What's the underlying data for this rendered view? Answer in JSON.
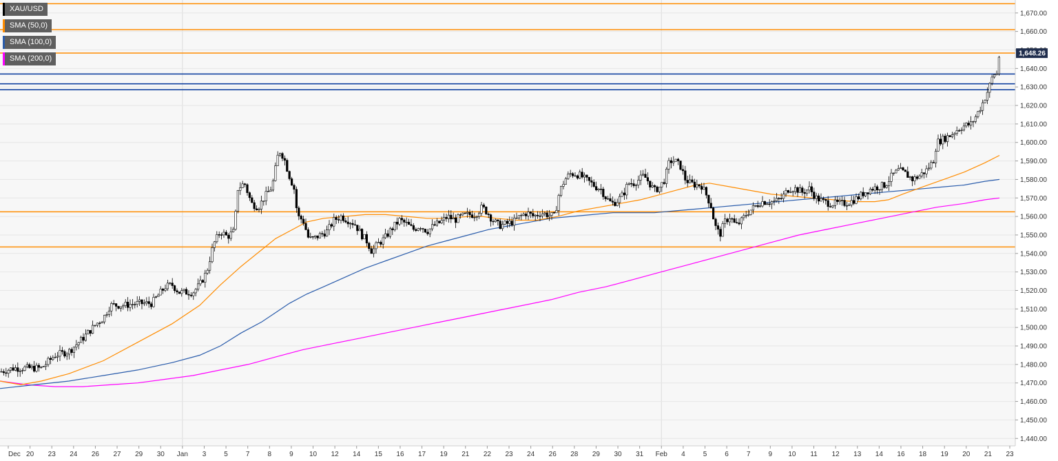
{
  "chart_data": {
    "type": "candlestick",
    "instrument": "XAU/USD",
    "legend": [
      {
        "label": "XAU/USD",
        "color": "#000000"
      },
      {
        "label": "SMA (50,0)",
        "color": "#ff8c00"
      },
      {
        "label": "SMA (100,0)",
        "color": "#2a5cab"
      },
      {
        "label": "SMA (200,0)",
        "color": "#ff00ff"
      }
    ],
    "legend_position": "top-left",
    "last_price_label": "1,648.26",
    "last_price": 1648.26,
    "ylim": [
      1436,
      1677
    ],
    "y_ticks": [
      1440,
      1450,
      1460,
      1470,
      1480,
      1490,
      1500,
      1510,
      1520,
      1530,
      1540,
      1550,
      1560,
      1570,
      1580,
      1590,
      1600,
      1610,
      1620,
      1630,
      1640,
      1650,
      1660,
      1670
    ],
    "y_tick_labels": [
      "1,440.00",
      "1,450.00",
      "1,460.00",
      "1,470.00",
      "1,480.00",
      "1,490.00",
      "1,500.00",
      "1,510.00",
      "1,520.00",
      "1,530.00",
      "1,540.00",
      "1,550.00",
      "1,560.00",
      "1,570.00",
      "1,580.00",
      "1,590.00",
      "1,600.00",
      "1,610.00",
      "1,620.00",
      "1,630.00",
      "1,640.00",
      "1,650.00",
      "1,660.00",
      "1,670.00"
    ],
    "x_tick_labels": [
      "Dec",
      "20",
      "23",
      "24",
      "26",
      "27",
      "29",
      "30",
      "Jan",
      "3",
      "5",
      "7",
      "8",
      "9",
      "10",
      "12",
      "14",
      "15",
      "16",
      "17",
      "19",
      "21",
      "22",
      "23",
      "24",
      "26",
      "28",
      "29",
      "30",
      "31",
      "Feb",
      "4",
      "5",
      "6",
      "7",
      "9",
      "10",
      "11",
      "12",
      "13",
      "14",
      "16",
      "18",
      "19",
      "20",
      "21",
      "23"
    ],
    "horizontal_lines": [
      {
        "value": 1675,
        "color": "#ff8c00"
      },
      {
        "value": 1661,
        "color": "#ff8c00"
      },
      {
        "value": 1648.3,
        "color": "#ff8c00"
      },
      {
        "value": 1637,
        "color": "#003399"
      },
      {
        "value": 1631.7,
        "color": "#003399"
      },
      {
        "value": 1628.5,
        "color": "#003399"
      },
      {
        "value": 1562.5,
        "color": "#ff8c00"
      },
      {
        "value": 1543.5,
        "color": "#ff8c00"
      }
    ],
    "price_path_close": [
      [
        0,
        1476
      ],
      [
        20,
        1478
      ],
      [
        40,
        1478
      ],
      [
        60,
        1478
      ],
      [
        80,
        1485
      ],
      [
        100,
        1487
      ],
      [
        120,
        1494
      ],
      [
        140,
        1502
      ],
      [
        150,
        1505
      ],
      [
        160,
        1512
      ],
      [
        180,
        1512
      ],
      [
        200,
        1513
      ],
      [
        220,
        1513
      ],
      [
        240,
        1522
      ],
      [
        250,
        1523
      ],
      [
        260,
        1519
      ],
      [
        280,
        1519
      ],
      [
        290,
        1523
      ],
      [
        300,
        1530
      ],
      [
        310,
        1545
      ],
      [
        320,
        1552
      ],
      [
        330,
        1549
      ],
      [
        340,
        1552
      ],
      [
        345,
        1575
      ],
      [
        355,
        1578
      ],
      [
        365,
        1567
      ],
      [
        375,
        1565
      ],
      [
        385,
        1571
      ],
      [
        395,
        1576
      ],
      [
        405,
        1596
      ],
      [
        412,
        1592
      ],
      [
        420,
        1582
      ],
      [
        427,
        1575
      ],
      [
        432,
        1560
      ],
      [
        440,
        1558
      ],
      [
        448,
        1548
      ],
      [
        455,
        1548
      ],
      [
        465,
        1550
      ],
      [
        475,
        1552
      ],
      [
        485,
        1558
      ],
      [
        495,
        1560
      ],
      [
        505,
        1558
      ],
      [
        515,
        1556
      ],
      [
        525,
        1550
      ],
      [
        532,
        1547
      ],
      [
        540,
        1541
      ],
      [
        548,
        1545
      ],
      [
        558,
        1548
      ],
      [
        568,
        1553
      ],
      [
        580,
        1558
      ],
      [
        590,
        1556
      ],
      [
        600,
        1553
      ],
      [
        610,
        1555
      ],
      [
        620,
        1552
      ],
      [
        630,
        1555
      ],
      [
        640,
        1557
      ],
      [
        650,
        1560
      ],
      [
        660,
        1558
      ],
      [
        670,
        1560
      ],
      [
        680,
        1561
      ],
      [
        690,
        1561
      ],
      [
        700,
        1565
      ],
      [
        708,
        1562
      ],
      [
        715,
        1558
      ],
      [
        725,
        1555
      ],
      [
        735,
        1556
      ],
      [
        745,
        1557
      ],
      [
        755,
        1560
      ],
      [
        765,
        1562
      ],
      [
        775,
        1560
      ],
      [
        785,
        1562
      ],
      [
        795,
        1561
      ],
      [
        805,
        1560
      ],
      [
        812,
        1573
      ],
      [
        820,
        1580
      ],
      [
        828,
        1583
      ],
      [
        835,
        1583
      ],
      [
        843,
        1582
      ],
      [
        850,
        1580
      ],
      [
        858,
        1578
      ],
      [
        865,
        1576
      ],
      [
        872,
        1575
      ],
      [
        880,
        1570
      ],
      [
        888,
        1567
      ],
      [
        895,
        1568
      ],
      [
        905,
        1572
      ],
      [
        912,
        1578
      ],
      [
        920,
        1578
      ],
      [
        928,
        1580
      ],
      [
        935,
        1582
      ],
      [
        943,
        1578
      ],
      [
        950,
        1574
      ],
      [
        958,
        1576
      ],
      [
        965,
        1580
      ],
      [
        972,
        1590
      ],
      [
        980,
        1590
      ],
      [
        988,
        1587
      ],
      [
        995,
        1580
      ],
      [
        1002,
        1578
      ],
      [
        1010,
        1577
      ],
      [
        1018,
        1577
      ],
      [
        1025,
        1572
      ],
      [
        1032,
        1566
      ],
      [
        1038,
        1555
      ],
      [
        1045,
        1550
      ],
      [
        1052,
        1557
      ],
      [
        1060,
        1560
      ],
      [
        1068,
        1555
      ],
      [
        1075,
        1557
      ],
      [
        1085,
        1562
      ],
      [
        1095,
        1565
      ],
      [
        1105,
        1568
      ],
      [
        1115,
        1568
      ],
      [
        1125,
        1568
      ],
      [
        1135,
        1570
      ],
      [
        1145,
        1575
      ],
      [
        1155,
        1575
      ],
      [
        1165,
        1573
      ],
      [
        1175,
        1575
      ],
      [
        1185,
        1570
      ],
      [
        1195,
        1568
      ],
      [
        1205,
        1567
      ],
      [
        1215,
        1567
      ],
      [
        1225,
        1567
      ],
      [
        1235,
        1568
      ],
      [
        1245,
        1570
      ],
      [
        1255,
        1573
      ],
      [
        1265,
        1575
      ],
      [
        1275,
        1576
      ],
      [
        1285,
        1577
      ],
      [
        1295,
        1582
      ],
      [
        1305,
        1585
      ],
      [
        1315,
        1583
      ],
      [
        1325,
        1580
      ],
      [
        1335,
        1582
      ],
      [
        1345,
        1585
      ],
      [
        1355,
        1590
      ],
      [
        1360,
        1600
      ],
      [
        1370,
        1602
      ],
      [
        1380,
        1604
      ],
      [
        1390,
        1607
      ],
      [
        1400,
        1609
      ],
      [
        1410,
        1610
      ],
      [
        1418,
        1615
      ],
      [
        1425,
        1620
      ],
      [
        1432,
        1626
      ],
      [
        1438,
        1632
      ],
      [
        1442,
        1637
      ],
      [
        1447,
        1637
      ],
      [
        1451,
        1648.26
      ]
    ],
    "sma50": [
      [
        0,
        1471
      ],
      [
        30,
        1469
      ],
      [
        60,
        1471
      ],
      [
        100,
        1475
      ],
      [
        150,
        1482
      ],
      [
        200,
        1492
      ],
      [
        250,
        1502
      ],
      [
        290,
        1512
      ],
      [
        320,
        1523
      ],
      [
        350,
        1533
      ],
      [
        380,
        1542
      ],
      [
        400,
        1548
      ],
      [
        420,
        1552
      ],
      [
        445,
        1557
      ],
      [
        470,
        1559
      ],
      [
        500,
        1560
      ],
      [
        530,
        1561
      ],
      [
        560,
        1561
      ],
      [
        590,
        1560
      ],
      [
        620,
        1559
      ],
      [
        650,
        1559
      ],
      [
        680,
        1560
      ],
      [
        700,
        1560
      ],
      [
        720,
        1559
      ],
      [
        750,
        1558
      ],
      [
        780,
        1558
      ],
      [
        810,
        1560
      ],
      [
        840,
        1563
      ],
      [
        870,
        1565
      ],
      [
        900,
        1567
      ],
      [
        930,
        1569
      ],
      [
        960,
        1572
      ],
      [
        990,
        1575
      ],
      [
        1010,
        1577
      ],
      [
        1030,
        1578
      ],
      [
        1060,
        1576
      ],
      [
        1090,
        1574
      ],
      [
        1120,
        1572
      ],
      [
        1150,
        1571
      ],
      [
        1180,
        1570
      ],
      [
        1210,
        1569
      ],
      [
        1240,
        1568
      ],
      [
        1270,
        1568
      ],
      [
        1290,
        1569
      ],
      [
        1310,
        1572
      ],
      [
        1340,
        1576
      ],
      [
        1370,
        1580
      ],
      [
        1400,
        1584
      ],
      [
        1430,
        1589
      ],
      [
        1451,
        1593
      ]
    ],
    "sma100": [
      [
        0,
        1467
      ],
      [
        50,
        1469
      ],
      [
        100,
        1471
      ],
      [
        150,
        1474
      ],
      [
        200,
        1477
      ],
      [
        250,
        1481
      ],
      [
        290,
        1485
      ],
      [
        320,
        1490
      ],
      [
        350,
        1497
      ],
      [
        380,
        1503
      ],
      [
        400,
        1508
      ],
      [
        420,
        1513
      ],
      [
        445,
        1518
      ],
      [
        470,
        1522
      ],
      [
        500,
        1527
      ],
      [
        530,
        1532
      ],
      [
        560,
        1536
      ],
      [
        590,
        1540
      ],
      [
        620,
        1544
      ],
      [
        650,
        1547
      ],
      [
        680,
        1550
      ],
      [
        710,
        1553
      ],
      [
        740,
        1555
      ],
      [
        770,
        1557
      ],
      [
        800,
        1559
      ],
      [
        830,
        1560
      ],
      [
        860,
        1561
      ],
      [
        890,
        1562
      ],
      [
        920,
        1562
      ],
      [
        950,
        1562
      ],
      [
        980,
        1563
      ],
      [
        1010,
        1564
      ],
      [
        1040,
        1565
      ],
      [
        1070,
        1566
      ],
      [
        1100,
        1567
      ],
      [
        1130,
        1568
      ],
      [
        1160,
        1569
      ],
      [
        1190,
        1570
      ],
      [
        1220,
        1571
      ],
      [
        1250,
        1572
      ],
      [
        1280,
        1573
      ],
      [
        1310,
        1574
      ],
      [
        1340,
        1575
      ],
      [
        1370,
        1576
      ],
      [
        1400,
        1577
      ],
      [
        1430,
        1579
      ],
      [
        1451,
        1580
      ]
    ],
    "sma200": [
      [
        0,
        1471
      ],
      [
        40,
        1469
      ],
      [
        80,
        1468
      ],
      [
        120,
        1468
      ],
      [
        160,
        1469
      ],
      [
        200,
        1470
      ],
      [
        240,
        1472
      ],
      [
        280,
        1474
      ],
      [
        320,
        1477
      ],
      [
        360,
        1480
      ],
      [
        400,
        1484
      ],
      [
        440,
        1488
      ],
      [
        480,
        1491
      ],
      [
        520,
        1494
      ],
      [
        560,
        1497
      ],
      [
        600,
        1500
      ],
      [
        640,
        1503
      ],
      [
        680,
        1506
      ],
      [
        720,
        1509
      ],
      [
        760,
        1512
      ],
      [
        800,
        1515
      ],
      [
        840,
        1519
      ],
      [
        880,
        1522
      ],
      [
        920,
        1526
      ],
      [
        960,
        1530
      ],
      [
        1000,
        1534
      ],
      [
        1040,
        1538
      ],
      [
        1080,
        1542
      ],
      [
        1120,
        1546
      ],
      [
        1160,
        1550
      ],
      [
        1200,
        1553
      ],
      [
        1240,
        1556
      ],
      [
        1280,
        1559
      ],
      [
        1320,
        1562
      ],
      [
        1360,
        1565
      ],
      [
        1400,
        1567
      ],
      [
        1430,
        1569
      ],
      [
        1451,
        1570
      ]
    ]
  }
}
